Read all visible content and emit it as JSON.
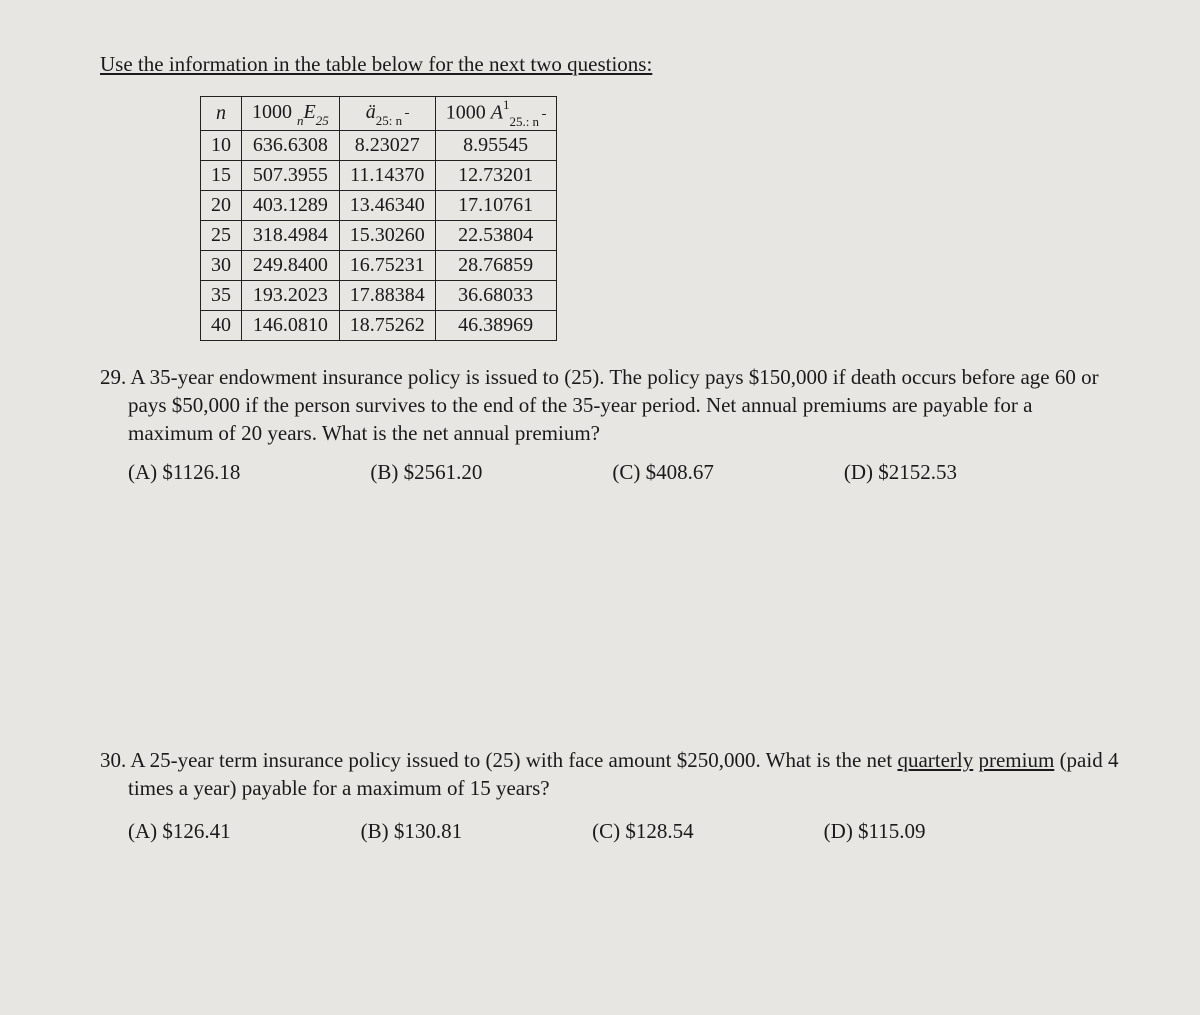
{
  "instruction": "Use the information in the table below for the next two questions:",
  "table": {
    "header": {
      "n": "n",
      "col1_prefix": "1000 ",
      "col1_sym": "ₙE₂₅",
      "col2_sym": "ä",
      "col2_sub": "25: n",
      "col3_prefix": "1000 ",
      "col3_sym": "A",
      "col3_sup": "1",
      "col3_sub": "25.: n"
    },
    "rows": [
      {
        "n": "10",
        "c1": "636.6308",
        "c2": "8.23027",
        "c3": "8.95545"
      },
      {
        "n": "15",
        "c1": "507.3955",
        "c2": "11.14370",
        "c3": "12.73201"
      },
      {
        "n": "20",
        "c1": "403.1289",
        "c2": "13.46340",
        "c3": "17.10761"
      },
      {
        "n": "25",
        "c1": "318.4984",
        "c2": "15.30260",
        "c3": "22.53804"
      },
      {
        "n": "30",
        "c1": "249.8400",
        "c2": "16.75231",
        "c3": "28.76859"
      },
      {
        "n": "35",
        "c1": "193.2023",
        "c2": "17.88384",
        "c3": "36.68033"
      },
      {
        "n": "40",
        "c1": "146.0810",
        "c2": "18.75262",
        "c3": "46.38969"
      }
    ]
  },
  "q29": {
    "num": "29.",
    "text": "A 35-year endowment insurance policy is issued to (25). The policy pays $150,000 if death occurs before age 60 or pays $50,000 if the person survives to the end of the 35-year period.  Net annual premiums are payable for a maximum of 20 years.  What is the net annual premium?",
    "opts": {
      "A": "(A)  $1126.18",
      "B": "(B)  $2561.20",
      "C": "(C)  $408.67",
      "D": "(D)  $2152.53"
    }
  },
  "q30": {
    "num": "30.",
    "text_pre": "A 25-year term insurance policy issued to (25) with face amount $250,000.  What is the net ",
    "u1": "quarterly",
    "text_mid1": " ",
    "u2": "premium",
    "text_post": " (paid 4 times a year) payable for a maximum of 15 years?",
    "opts": {
      "A": "(A)  $126.41",
      "B": "(B)  $130.81",
      "C": "(C)  $128.54",
      "D": "(D)  $115.09"
    }
  }
}
